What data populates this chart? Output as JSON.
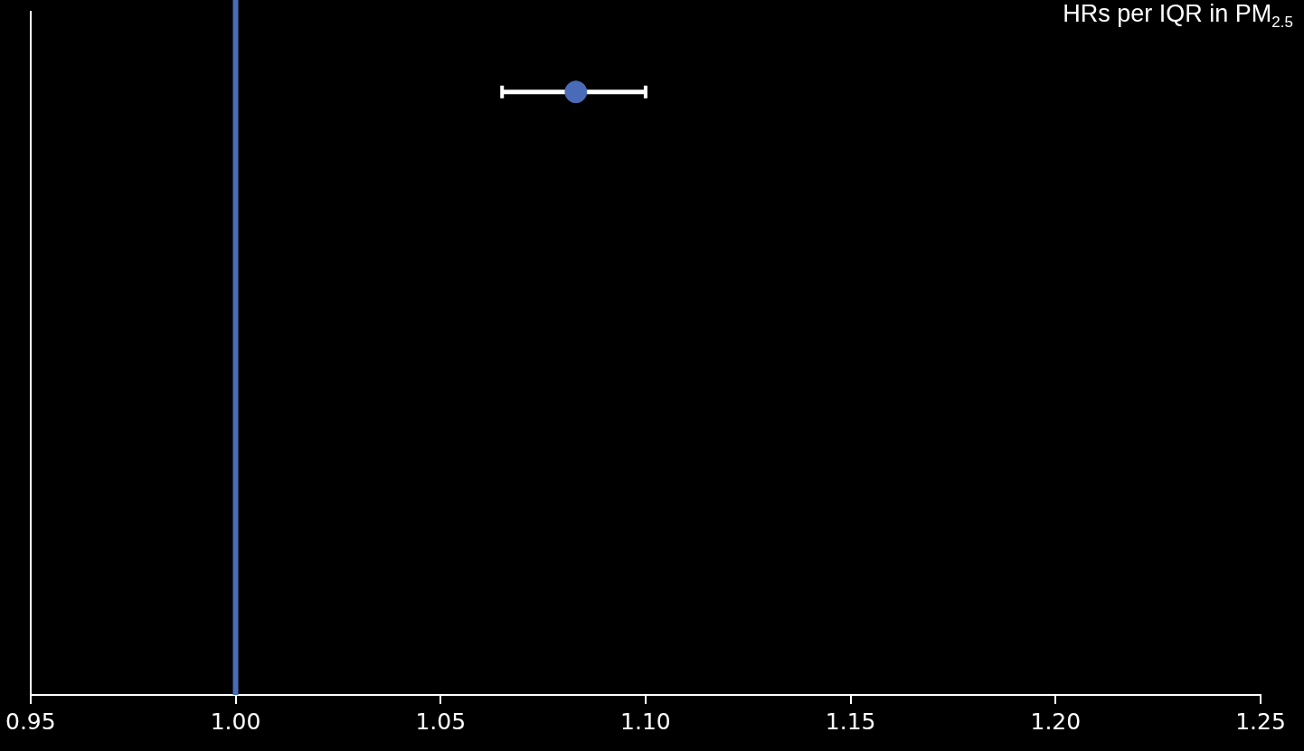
{
  "chart_data": {
    "type": "scatter",
    "orientation": "horizontal",
    "title": "HRs per IQR in PM$_{2.5}$",
    "categories": [
      null
    ],
    "values": [
      1.083
    ],
    "errors": [
      [
        1.065,
        1.1
      ]
    ],
    "color": "#4a6cb8",
    "xlim": [
      0.95,
      1.25
    ],
    "xticks": [
      {
        "value": 0.95,
        "label": "0.95"
      },
      {
        "value": 1.0,
        "label": "1.00"
      },
      {
        "value": 1.05,
        "label": "1.05"
      },
      {
        "value": 1.1,
        "label": "1.10"
      },
      {
        "value": 1.15,
        "label": "1.15"
      },
      {
        "value": 1.2,
        "label": "1.20"
      },
      {
        "value": 1.25,
        "label": "1.25"
      }
    ],
    "ref_lines": [
      {
        "axis": "x",
        "value": 1.0,
        "color": "#4a6cb8"
      }
    ],
    "grid": false,
    "legend": false,
    "marker": "circle"
  }
}
